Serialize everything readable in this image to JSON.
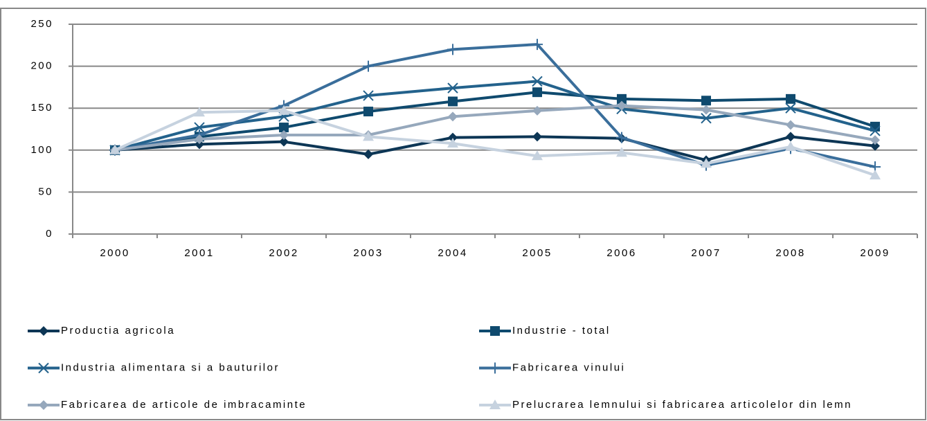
{
  "chart_data": {
    "type": "line",
    "categories": [
      "2000",
      "2001",
      "2002",
      "2003",
      "2004",
      "2005",
      "2006",
      "2007",
      "2008",
      "2009"
    ],
    "ylim": [
      0,
      250
    ],
    "yticks": [
      0,
      50,
      100,
      150,
      200,
      250
    ],
    "grid": true,
    "legend": "bottom",
    "series": [
      {
        "name": "Productia agricola",
        "color": "#0d3655",
        "marker": "diamond",
        "values": [
          100,
          107,
          110,
          95,
          115,
          116,
          114,
          88,
          116,
          105
        ]
      },
      {
        "name": "Industrie - total",
        "color": "#0f4a6e",
        "marker": "square",
        "values": [
          100,
          116,
          127,
          146,
          158,
          169,
          161,
          159,
          161,
          128
        ]
      },
      {
        "name": "Industria alimentara si a bauturilor",
        "color": "#23628c",
        "marker": "x",
        "values": [
          100,
          127,
          140,
          165,
          174,
          182,
          149,
          138,
          150,
          123
        ]
      },
      {
        "name": "Fabricarea vinului",
        "color": "#3a6e9b",
        "marker": "plus",
        "values": [
          100,
          118,
          153,
          200,
          220,
          226,
          115,
          82,
          102,
          80
        ]
      },
      {
        "name": "Fabricarea de articole de imbracaminte",
        "color": "#96a8bc",
        "marker": "diamond",
        "values": [
          100,
          113,
          118,
          118,
          140,
          147,
          153,
          148,
          130,
          112
        ]
      },
      {
        "name": "Prelucrarea lemnului si fabricarea articolelor din lemn",
        "color": "#c6d2df",
        "marker": "triangle",
        "values": [
          100,
          145,
          147,
          116,
          108,
          93,
          97,
          84,
          104,
          70
        ]
      }
    ]
  }
}
